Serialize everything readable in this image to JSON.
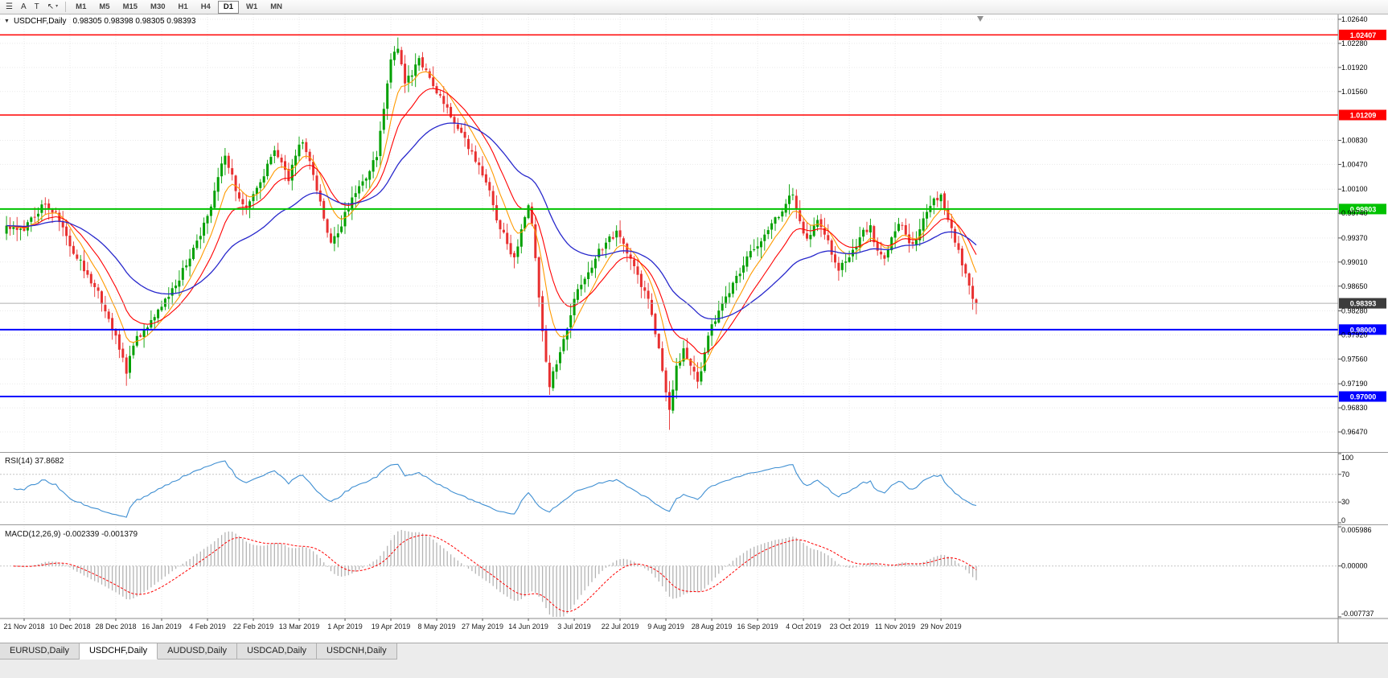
{
  "toolbar": {
    "tools": [
      {
        "name": "menu",
        "glyph": "☰"
      },
      {
        "name": "arrow-tool",
        "glyph": "A"
      },
      {
        "name": "text-tool",
        "glyph": "T"
      },
      {
        "name": "draw-tool",
        "glyph": "↖",
        "caret": "▾"
      }
    ],
    "timeframes": [
      "M1",
      "M5",
      "M15",
      "M30",
      "H1",
      "H4",
      "D1",
      "W1",
      "MN"
    ],
    "active_timeframe": "D1"
  },
  "chart": {
    "symbol_arrow": "▼",
    "title": "USDCHF,Daily",
    "ohlc": "0.98305 0.98398 0.98305 0.98393"
  },
  "rsi_panel": {
    "label": "RSI(14) 37.8682",
    "axis_labels": [
      "100",
      "70",
      "30",
      "0"
    ],
    "axis_values": [
      100,
      70,
      30,
      0
    ],
    "levels": [
      70,
      30
    ],
    "line_color": "#3f8fd2"
  },
  "macd_panel": {
    "label": "MACD(12,26,9) -0.002339 -0.001379",
    "axis": [
      {
        "label": "0.005986",
        "value": 0.005986
      },
      {
        "label": "0.00000",
        "value": 0
      },
      {
        "label": "-0.007737",
        "value": -0.007737
      }
    ],
    "range": {
      "max": 0.005986,
      "min": -0.007737
    },
    "hist_color": "#b4b4b4",
    "signal_color": "#ff0000"
  },
  "tabs": [
    {
      "label": "EURUSD,Daily",
      "active": false
    },
    {
      "label": "USDCHF,Daily",
      "active": true
    },
    {
      "label": "AUDUSD,Daily",
      "active": false
    },
    {
      "label": "USDCAD,Daily",
      "active": false
    },
    {
      "label": "USDCNH,Daily",
      "active": false
    }
  ],
  "chart_data": {
    "type": "candlestick",
    "title": "USDCHF,Daily",
    "symbol": "USDCHF",
    "timeframe": "Daily",
    "bars": 271,
    "seed": 20,
    "noise": 0.0014,
    "last_close": 0.98393,
    "price_axis": [
      "1.02640",
      "1.02280",
      "1.01920",
      "1.01560",
      "1.00830",
      "1.00470",
      "1.00100",
      "0.99740",
      "0.99370",
      "0.99010",
      "0.98650",
      "0.98280",
      "0.97920",
      "0.97560",
      "0.97190",
      "0.96830",
      "0.96470"
    ],
    "date_axis": {
      "bar_step": 13,
      "labels": [
        "21 Nov 2018",
        "10 Dec 2018",
        "28 Dec 2018",
        "16 Jan 2019",
        "4 Feb 2019",
        "22 Feb 2019",
        "13 Mar 2019",
        "1 Apr 2019",
        "19 Apr 2019",
        "8 May 2019",
        "27 May 2019",
        "14 Jun 2019",
        "3 Jul 2019",
        "22 Jul 2019",
        "9 Aug 2019",
        "28 Aug 2019",
        "16 Sep 2019",
        "4 Oct 2019",
        "23 Oct 2019",
        "11 Nov 2019",
        "29 Nov 2019"
      ]
    },
    "hlines": [
      {
        "value": 1.02407,
        "label": "1.02407",
        "color": "#ff0000",
        "width": 1.4
      },
      {
        "value": 1.01209,
        "label": "1.01209",
        "color": "#ff0000",
        "width": 1.4
      },
      {
        "value": 0.99803,
        "label": "0.99803",
        "color": "#00c200",
        "width": 2
      },
      {
        "value": 0.98,
        "label": "0.98000",
        "color": "#0000ff",
        "width": 2
      },
      {
        "value": 0.97,
        "label": "0.97000",
        "color": "#0000ff",
        "width": 2
      }
    ],
    "current_price": {
      "value": 0.98393,
      "label": "0.98393",
      "line_color": "#b0b0b0",
      "box_color": "#3c3c3c"
    },
    "anchors": [
      [
        0,
        0.9952
      ],
      [
        3,
        0.9968
      ],
      [
        6,
        0.9987
      ],
      [
        9,
        0.9976
      ],
      [
        12,
        0.994
      ],
      [
        15,
        0.9906
      ],
      [
        18,
        0.9882
      ],
      [
        21,
        0.9858
      ],
      [
        24,
        0.9816
      ],
      [
        27,
        0.977
      ],
      [
        29,
        0.9734
      ],
      [
        31,
        0.9776
      ],
      [
        34,
        0.98
      ],
      [
        38,
        0.983
      ],
      [
        42,
        0.9862
      ],
      [
        46,
        0.9896
      ],
      [
        50,
        0.994
      ],
      [
        53,
        0.9984
      ],
      [
        55,
        1.0028
      ],
      [
        57,
        1.006
      ],
      [
        59,
        1.0032
      ],
      [
        61,
        0.9996
      ],
      [
        63,
        0.9982
      ],
      [
        66,
        1.0012
      ],
      [
        69,
        1.0048
      ],
      [
        71,
        1.0068
      ],
      [
        73,
        1.005
      ],
      [
        75,
        1.0022
      ],
      [
        77,
        1.006
      ],
      [
        79,
        1.008
      ],
      [
        81,
        1.0052
      ],
      [
        83,
        1.0008
      ],
      [
        85,
        0.9966
      ],
      [
        87,
        0.993
      ],
      [
        89,
        0.9944
      ],
      [
        91,
        0.9976
      ],
      [
        94,
        1.0004
      ],
      [
        97,
        1.0026
      ],
      [
        100,
        1.0058
      ],
      [
        102,
        1.013
      ],
      [
        104,
        1.0204
      ],
      [
        106,
        1.022
      ],
      [
        108,
        1.0168
      ],
      [
        110,
        1.018
      ],
      [
        112,
        1.0206
      ],
      [
        114,
        1.0188
      ],
      [
        116,
        1.0164
      ],
      [
        118,
        1.015
      ],
      [
        120,
        1.0132
      ],
      [
        123,
        1.01
      ],
      [
        126,
        1.007
      ],
      [
        129,
        1.0046
      ],
      [
        131,
        1.002
      ],
      [
        133,
        0.9986
      ],
      [
        135,
        0.995
      ],
      [
        137,
        0.9928
      ],
      [
        139,
        0.9908
      ],
      [
        141,
        0.995
      ],
      [
        143,
        0.9986
      ],
      [
        144,
        0.9958
      ],
      [
        146,
        0.9848
      ],
      [
        148,
        0.9752
      ],
      [
        149,
        0.9714
      ],
      [
        151,
        0.9748
      ],
      [
        153,
        0.9786
      ],
      [
        156,
        0.9846
      ],
      [
        159,
        0.9876
      ],
      [
        162,
        0.9906
      ],
      [
        165,
        0.993
      ],
      [
        168,
        0.9948
      ],
      [
        170,
        0.9928
      ],
      [
        172,
        0.9906
      ],
      [
        174,
        0.9882
      ],
      [
        176,
        0.9858
      ],
      [
        178,
        0.9822
      ],
      [
        180,
        0.9772
      ],
      [
        182,
        0.9706
      ],
      [
        183,
        0.968
      ],
      [
        185,
        0.9746
      ],
      [
        187,
        0.9772
      ],
      [
        189,
        0.9746
      ],
      [
        191,
        0.9722
      ],
      [
        193,
        0.9766
      ],
      [
        195,
        0.9808
      ],
      [
        198,
        0.984
      ],
      [
        201,
        0.987
      ],
      [
        204,
        0.9896
      ],
      [
        207,
        0.992
      ],
      [
        210,
        0.9942
      ],
      [
        213,
        0.9968
      ],
      [
        216,
        0.9988
      ],
      [
        218,
        1.0002
      ],
      [
        220,
        0.9962
      ],
      [
        222,
        0.9936
      ],
      [
        225,
        0.9964
      ],
      [
        227,
        0.9942
      ],
      [
        229,
        0.9912
      ],
      [
        231,
        0.9888
      ],
      [
        234,
        0.9908
      ],
      [
        237,
        0.9938
      ],
      [
        240,
        0.9956
      ],
      [
        242,
        0.9918
      ],
      [
        244,
        0.9906
      ],
      [
        246,
        0.9938
      ],
      [
        248,
        0.9958
      ],
      [
        250,
        0.9942
      ],
      [
        252,
        0.9928
      ],
      [
        254,
        0.995
      ],
      [
        256,
        0.9976
      ],
      [
        258,
        0.9996
      ],
      [
        260,
        1.0002
      ],
      [
        262,
        0.9964
      ],
      [
        264,
        0.993
      ],
      [
        266,
        0.9896
      ],
      [
        268,
        0.9866
      ],
      [
        269,
        0.9846
      ],
      [
        270,
        0.98393
      ]
    ],
    "features": [
      {
        "bar": 29,
        "low": 0.9716
      },
      {
        "bar": 106,
        "high": 1.0228
      },
      {
        "bar": 149,
        "low": 0.9705
      },
      {
        "bar": 183,
        "low": 0.965
      }
    ],
    "colors": {
      "up": "#00a000",
      "down": "#e83030",
      "ma_fast": "#ff9a00",
      "ma_mid": "#ff0000",
      "ma_slow": "#2828cc",
      "grid": "#e9e9e9"
    },
    "ma_periods": {
      "fast": 8,
      "mid": 16,
      "slow": 40
    },
    "indicators": {
      "rsi_period": 14,
      "macd": [
        12,
        26,
        9
      ]
    }
  }
}
